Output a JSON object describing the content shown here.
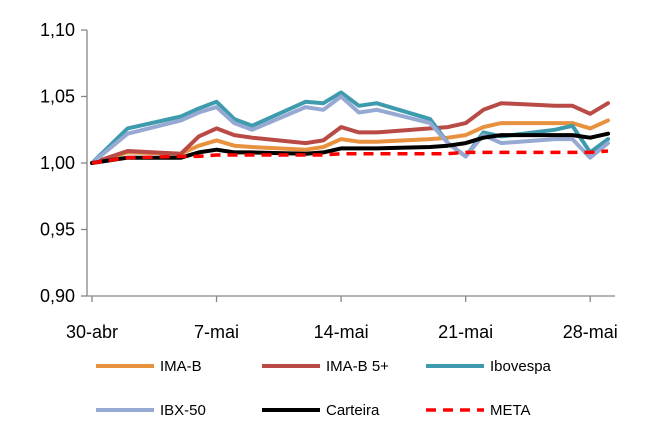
{
  "chart_data": {
    "type": "line",
    "title": "",
    "xlabel": "",
    "ylabel": "",
    "x": [
      "30-abr",
      "2-mai",
      "5-mai",
      "6-mai",
      "7-mai",
      "8-mai",
      "9-mai",
      "12-mai",
      "13-mai",
      "14-mai",
      "15-mai",
      "16-mai",
      "19-mai",
      "20-mai",
      "21-mai",
      "22-mai",
      "23-mai",
      "26-mai",
      "27-mai",
      "28-mai",
      "29-mai"
    ],
    "x_day": [
      0,
      2,
      5,
      6,
      7,
      8,
      9,
      12,
      13,
      14,
      15,
      16,
      19,
      20,
      21,
      22,
      23,
      26,
      27,
      28,
      29
    ],
    "x_ticks": [
      {
        "day": 0,
        "label": "30-abr"
      },
      {
        "day": 7,
        "label": "7-mai"
      },
      {
        "day": 14,
        "label": "14-mai"
      },
      {
        "day": 21,
        "label": "21-mai"
      },
      {
        "day": 28,
        "label": "28-mai"
      }
    ],
    "ylim": [
      0.9,
      1.1
    ],
    "y_ticks": [
      "0,90",
      "0,95",
      "1,00",
      "1,05",
      "1,10"
    ],
    "y_tick_values": [
      0.9,
      0.95,
      1.0,
      1.05,
      1.1
    ],
    "grid": false,
    "legend_position": "bottom",
    "series": [
      {
        "name": "IMA-B",
        "color": "#E8913F",
        "dash": false,
        "values": [
          1.0,
          1.008,
          1.007,
          1.013,
          1.017,
          1.013,
          1.012,
          1.01,
          1.012,
          1.018,
          1.016,
          1.016,
          1.018,
          1.019,
          1.021,
          1.027,
          1.03,
          1.03,
          1.03,
          1.026,
          1.032
        ]
      },
      {
        "name": "IMA-B 5+",
        "color": "#B94A45",
        "dash": false,
        "values": [
          1.0,
          1.009,
          1.007,
          1.02,
          1.026,
          1.021,
          1.019,
          1.015,
          1.017,
          1.027,
          1.023,
          1.023,
          1.026,
          1.027,
          1.03,
          1.04,
          1.045,
          1.043,
          1.043,
          1.037,
          1.045
        ]
      },
      {
        "name": "Ibovespa",
        "color": "#3E9BAE",
        "dash": false,
        "values": [
          1.0,
          1.026,
          1.035,
          1.041,
          1.046,
          1.033,
          1.028,
          1.046,
          1.045,
          1.053,
          1.043,
          1.045,
          1.033,
          1.015,
          1.005,
          1.023,
          1.02,
          1.025,
          1.028,
          1.008,
          1.018
        ]
      },
      {
        "name": "IBX-50",
        "color": "#95A9D2",
        "dash": false,
        "values": [
          1.0,
          1.022,
          1.032,
          1.038,
          1.042,
          1.03,
          1.025,
          1.042,
          1.04,
          1.05,
          1.038,
          1.04,
          1.03,
          1.015,
          1.005,
          1.021,
          1.015,
          1.018,
          1.018,
          1.004,
          1.015
        ]
      },
      {
        "name": "Carteira",
        "color": "#000000",
        "dash": false,
        "values": [
          1.0,
          1.004,
          1.004,
          1.008,
          1.01,
          1.008,
          1.008,
          1.007,
          1.008,
          1.011,
          1.011,
          1.011,
          1.012,
          1.013,
          1.015,
          1.019,
          1.021,
          1.021,
          1.021,
          1.019,
          1.022
        ]
      },
      {
        "name": "META",
        "color": "#FF0000",
        "dash": true,
        "values": [
          1.0,
          1.004,
          1.005,
          1.005,
          1.006,
          1.006,
          1.006,
          1.006,
          1.006,
          1.007,
          1.007,
          1.007,
          1.007,
          1.007,
          1.008,
          1.008,
          1.008,
          1.008,
          1.008,
          1.008,
          1.009
        ]
      }
    ]
  }
}
